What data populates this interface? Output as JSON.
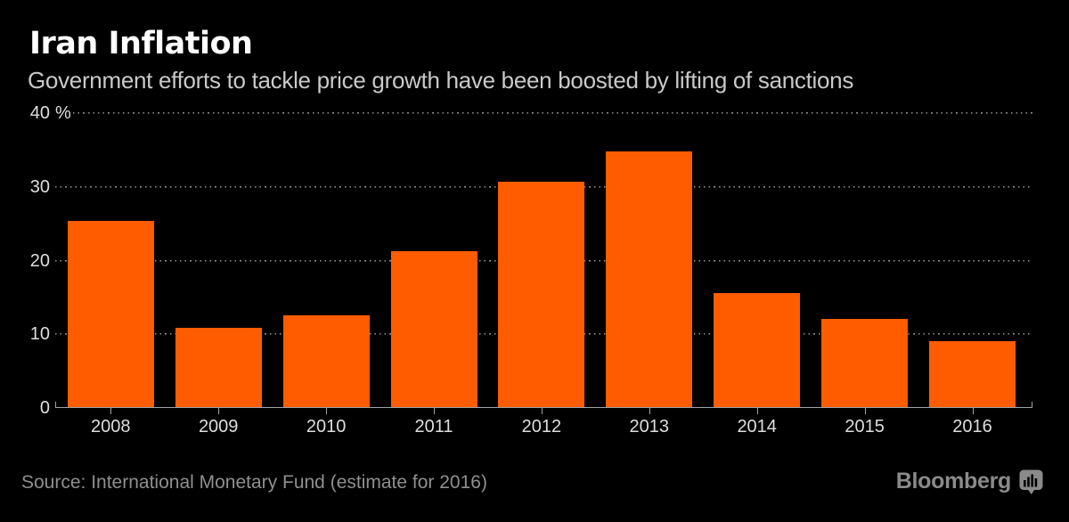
{
  "header": {
    "title": "Iran Inflation",
    "subtitle": "Government efforts to tackle price growth have been boosted by lifting of sanctions"
  },
  "chart_data": {
    "type": "bar",
    "title": "Iran Inflation",
    "subtitle": "Government efforts to tackle price growth have been boosted by lifting of sanctions",
    "categories": [
      "2008",
      "2009",
      "2010",
      "2011",
      "2012",
      "2013",
      "2014",
      "2015",
      "2016"
    ],
    "values": [
      25.3,
      10.8,
      12.4,
      21.2,
      30.6,
      34.7,
      15.5,
      12.0,
      8.9
    ],
    "unit": "%",
    "xlabel": "",
    "ylabel": "",
    "ylim": [
      0,
      40
    ],
    "yticks": [
      0,
      10,
      20,
      30,
      40
    ],
    "ytick_top_suffix": " %",
    "grid": "horizontal-dotted",
    "legend": "none",
    "bar_color": "#FF5C00"
  },
  "footer": {
    "source": "Source: International Monetary Fund (estimate for 2016)",
    "brand": "Bloomberg",
    "brand_icon": "bar-chart-bubble-icon"
  },
  "colors": {
    "background": "#000000",
    "bar": "#FF5C00",
    "title_text": "#FFFFFF",
    "subtitle_text": "#C9C9C9",
    "axis_text": "#DEDEDE",
    "grid_dots": "#8E8E8E",
    "axis_line": "#9EA4A8",
    "source_text": "#8F8F8F",
    "brand_text": "#8A8A8A"
  }
}
